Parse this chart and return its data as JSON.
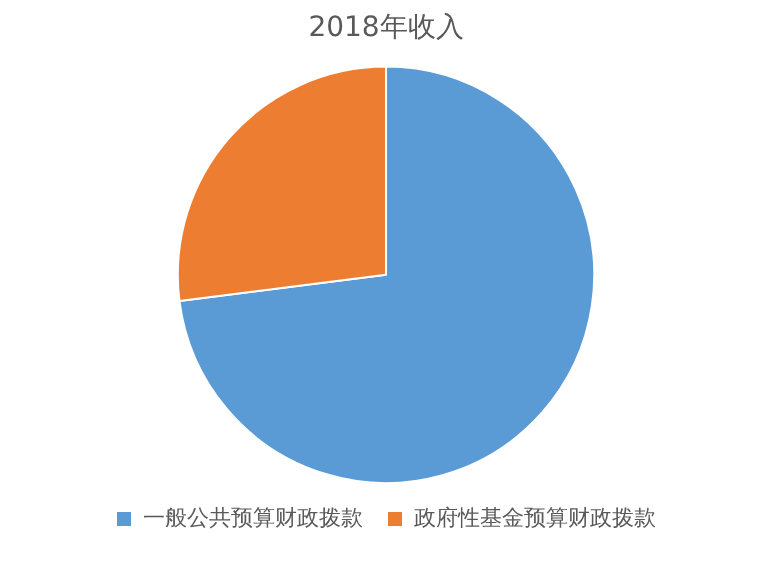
{
  "chart_data": {
    "type": "pie",
    "title": "2018年收入",
    "categories": [
      "一般公共预算财政拨款",
      "政府性基金预算财政拨款"
    ],
    "values": [
      73,
      27
    ],
    "colors": [
      "#5b9bd5",
      "#ed7d31"
    ],
    "legend": "bottom"
  }
}
